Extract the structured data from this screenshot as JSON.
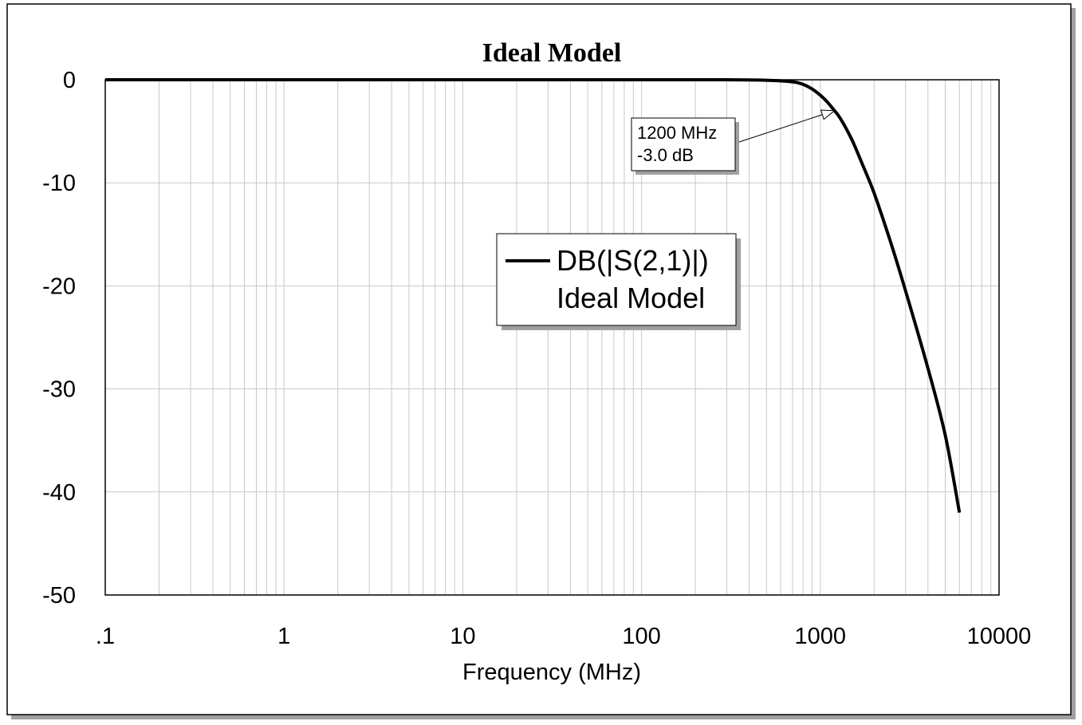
{
  "chart_data": {
    "type": "line",
    "title": "Ideal Model",
    "xlabel": "Frequency (MHz)",
    "ylabel": "",
    "x_scale": "log",
    "xlim": [
      0.1,
      10000
    ],
    "ylim": [
      -50,
      0
    ],
    "x_tick_labels": [
      ".1",
      "1",
      "10",
      "100",
      "1000",
      "10000"
    ],
    "y_tick_labels": [
      "0",
      "-10",
      "-20",
      "-30",
      "-40",
      "-50"
    ],
    "grid": true,
    "series": [
      {
        "name": "DB(|S(2,1)|)",
        "subtitle": "Ideal Model",
        "color": "#000000",
        "x": [
          0.1,
          1,
          10,
          100,
          300,
          500,
          700,
          800,
          900,
          1000,
          1100,
          1200,
          1300,
          1500,
          1700,
          2000,
          2500,
          3000,
          4000,
          5000,
          6000
        ],
        "y": [
          0,
          0,
          0,
          0,
          0,
          -0.05,
          -0.2,
          -0.45,
          -0.9,
          -1.5,
          -2.2,
          -3.0,
          -3.8,
          -5.8,
          -8.0,
          -11.0,
          -16.0,
          -20.5,
          -28.0,
          -34.5,
          -42.0
        ]
      }
    ],
    "annotations": [
      {
        "x": 1200,
        "y": -3.0,
        "line1": "1200 MHz",
        "line2": "-3.0 dB"
      }
    ],
    "legend_position": "center-right"
  }
}
